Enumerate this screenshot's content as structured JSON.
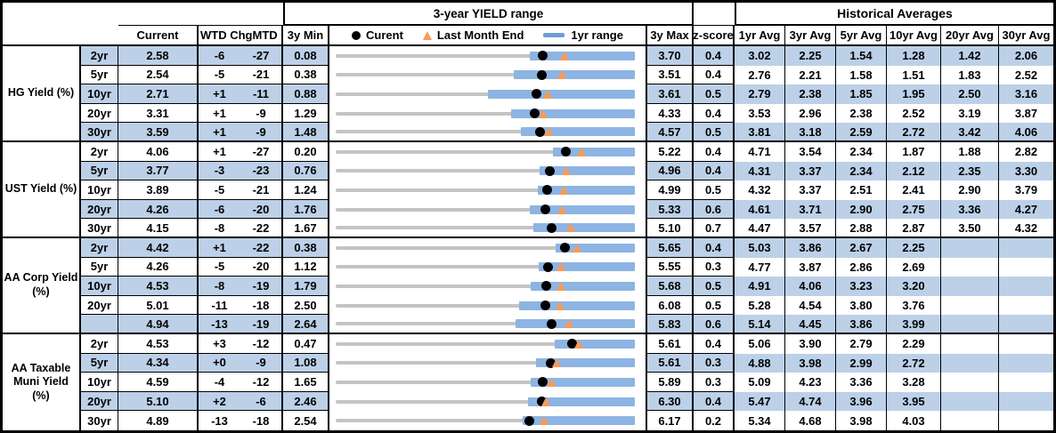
{
  "header": {
    "chart_section_title": "3-year YIELD range",
    "hist_section_title": "Historical Averages",
    "columns": {
      "current": "Current",
      "wtd": "WTD Chg",
      "mtd": "MTD Chg",
      "min3y": "3y Min",
      "max3y": "3y Max",
      "zscore": "z-score"
    },
    "avg_headers": [
      "1yr Avg",
      "3yr Avg",
      "5yr Avg",
      "10yr Avg",
      "20yr Avg",
      "30yr Avg"
    ],
    "legend": {
      "current": "Curent",
      "last_month_end": "Last Month End",
      "range_1yr": "1yr range"
    }
  },
  "colors": {
    "stripe": "#BCD0E8",
    "bar": "#8DB4E2",
    "track": "#C4C4C4",
    "marker_dot": "#000000",
    "marker_triangle": "#F79B57",
    "legend_dash": "#6D9ED4"
  },
  "chart_data": {
    "type": "table",
    "title": "3-year YIELD range",
    "row_chart_kind": "range-strip: per-row x-domain [3y Min, 3y Max]; markers = Current dot, Last Month End triangle, 1yr range bar",
    "groups": [
      {
        "name": "HG Yield (%)",
        "rows": [
          {
            "tenor": "2yr",
            "current": "2.58",
            "wtd": "-6",
            "mtd": "-27",
            "min3y": "0.08",
            "max3y": "3.70",
            "z": "0.4",
            "last_month_end": 2.85,
            "range1yr_lo": 2.43,
            "range1yr_hi": 3.7,
            "avgs": [
              "3.02",
              "2.25",
              "1.54",
              "1.28",
              "1.42",
              "2.06"
            ]
          },
          {
            "tenor": "5yr",
            "current": "2.54",
            "wtd": "-5",
            "mtd": "-21",
            "min3y": "0.38",
            "max3y": "3.51",
            "z": "0.4",
            "last_month_end": 2.75,
            "range1yr_lo": 2.24,
            "range1yr_hi": 3.51,
            "avgs": [
              "2.76",
              "2.21",
              "1.58",
              "1.51",
              "1.83",
              "2.52"
            ]
          },
          {
            "tenor": "10yr",
            "current": "2.71",
            "wtd": "+1",
            "mtd": "-11",
            "min3y": "0.88",
            "max3y": "3.61",
            "z": "0.5",
            "last_month_end": 2.82,
            "range1yr_lo": 2.27,
            "range1yr_hi": 3.61,
            "avgs": [
              "2.79",
              "2.38",
              "1.85",
              "1.95",
              "2.50",
              "3.16"
            ]
          },
          {
            "tenor": "20yr",
            "current": "3.31",
            "wtd": "+1",
            "mtd": "-9",
            "min3y": "1.29",
            "max3y": "4.33",
            "z": "0.4",
            "last_month_end": 3.4,
            "range1yr_lo": 3.07,
            "range1yr_hi": 4.33,
            "avgs": [
              "3.53",
              "2.96",
              "2.38",
              "2.52",
              "3.19",
              "3.87"
            ]
          },
          {
            "tenor": "30yr",
            "current": "3.59",
            "wtd": "+1",
            "mtd": "-9",
            "min3y": "1.48",
            "max3y": "4.57",
            "z": "0.5",
            "last_month_end": 3.68,
            "range1yr_lo": 3.39,
            "range1yr_hi": 4.57,
            "avgs": [
              "3.81",
              "3.18",
              "2.59",
              "2.72",
              "3.42",
              "4.06"
            ]
          }
        ]
      },
      {
        "name": "UST Yield (%)",
        "rows": [
          {
            "tenor": "2yr",
            "current": "4.06",
            "wtd": "+1",
            "mtd": "-27",
            "min3y": "0.20",
            "max3y": "5.22",
            "z": "0.4",
            "last_month_end": 4.33,
            "range1yr_lo": 3.85,
            "range1yr_hi": 5.22,
            "avgs": [
              "4.71",
              "3.54",
              "2.34",
              "1.87",
              "1.88",
              "2.82"
            ]
          },
          {
            "tenor": "5yr",
            "current": "3.77",
            "wtd": "-3",
            "mtd": "-23",
            "min3y": "0.76",
            "max3y": "4.96",
            "z": "0.4",
            "last_month_end": 4.0,
            "range1yr_lo": 3.62,
            "range1yr_hi": 4.96,
            "avgs": [
              "4.31",
              "3.37",
              "2.34",
              "2.12",
              "2.35",
              "3.30"
            ]
          },
          {
            "tenor": "10yr",
            "current": "3.89",
            "wtd": "-5",
            "mtd": "-21",
            "min3y": "1.24",
            "max3y": "4.99",
            "z": "0.5",
            "last_month_end": 4.1,
            "range1yr_lo": 3.77,
            "range1yr_hi": 4.99,
            "avgs": [
              "4.32",
              "3.37",
              "2.51",
              "2.41",
              "2.90",
              "3.79"
            ]
          },
          {
            "tenor": "20yr",
            "current": "4.26",
            "wtd": "-6",
            "mtd": "-20",
            "min3y": "1.76",
            "max3y": "5.33",
            "z": "0.6",
            "last_month_end": 4.46,
            "range1yr_lo": 4.08,
            "range1yr_hi": 5.33,
            "avgs": [
              "4.61",
              "3.71",
              "2.90",
              "2.75",
              "3.36",
              "4.27"
            ]
          },
          {
            "tenor": "30yr",
            "current": "4.15",
            "wtd": "-8",
            "mtd": "-22",
            "min3y": "1.67",
            "max3y": "5.10",
            "z": "0.7",
            "last_month_end": 4.37,
            "range1yr_lo": 3.94,
            "range1yr_hi": 5.1,
            "avgs": [
              "4.47",
              "3.57",
              "2.88",
              "2.87",
              "3.50",
              "4.32"
            ]
          }
        ]
      },
      {
        "name": "AA Corp Yield (%)",
        "rows": [
          {
            "tenor": "2yr",
            "current": "4.42",
            "wtd": "+1",
            "mtd": "-22",
            "min3y": "0.38",
            "max3y": "5.65",
            "z": "0.4",
            "last_month_end": 4.64,
            "range1yr_lo": 4.25,
            "range1yr_hi": 5.65,
            "avgs": [
              "5.03",
              "3.86",
              "2.67",
              "2.25",
              "",
              ""
            ]
          },
          {
            "tenor": "5yr",
            "current": "4.26",
            "wtd": "-5",
            "mtd": "-20",
            "min3y": "1.12",
            "max3y": "5.55",
            "z": "0.3",
            "last_month_end": 4.46,
            "range1yr_lo": 4.13,
            "range1yr_hi": 5.55,
            "avgs": [
              "4.77",
              "3.87",
              "2.86",
              "2.69",
              "",
              ""
            ]
          },
          {
            "tenor": "10yr",
            "current": "4.53",
            "wtd": "-8",
            "mtd": "-19",
            "min3y": "1.79",
            "max3y": "5.68",
            "z": "0.5",
            "last_month_end": 4.72,
            "range1yr_lo": 4.32,
            "range1yr_hi": 5.68,
            "avgs": [
              "4.91",
              "4.06",
              "3.23",
              "3.20",
              "",
              ""
            ]
          },
          {
            "tenor": "20yr",
            "current": "5.01",
            "wtd": "-11",
            "mtd": "-18",
            "min3y": "2.50",
            "max3y": "6.08",
            "z": "0.5",
            "last_month_end": 5.19,
            "range1yr_lo": 4.69,
            "range1yr_hi": 6.08,
            "avgs": [
              "5.28",
              "4.54",
              "3.80",
              "3.76",
              "",
              ""
            ]
          },
          {
            "tenor": "",
            "current": "4.94",
            "wtd": "-13",
            "mtd": "-19",
            "min3y": "2.64",
            "max3y": "5.83",
            "z": "0.6",
            "last_month_end": 5.13,
            "range1yr_lo": 4.56,
            "range1yr_hi": 5.83,
            "avgs": [
              "5.14",
              "4.45",
              "3.86",
              "3.99",
              "",
              ""
            ]
          }
        ]
      },
      {
        "name": "AA Taxable Muni Yield (%)",
        "rows": [
          {
            "tenor": "2yr",
            "current": "4.53",
            "wtd": "+3",
            "mtd": "-12",
            "min3y": "0.47",
            "max3y": "5.61",
            "z": "0.4",
            "last_month_end": 4.65,
            "range1yr_lo": 4.24,
            "range1yr_hi": 5.61,
            "avgs": [
              "5.06",
              "3.90",
              "2.79",
              "2.29",
              "",
              ""
            ]
          },
          {
            "tenor": "5yr",
            "current": "4.34",
            "wtd": "+0",
            "mtd": "-9",
            "min3y": "1.08",
            "max3y": "5.61",
            "z": "0.3",
            "last_month_end": 4.43,
            "range1yr_lo": 4.11,
            "range1yr_hi": 5.61,
            "avgs": [
              "4.88",
              "3.98",
              "2.99",
              "2.72",
              "",
              ""
            ]
          },
          {
            "tenor": "10yr",
            "current": "4.59",
            "wtd": "-4",
            "mtd": "-12",
            "min3y": "1.65",
            "max3y": "5.89",
            "z": "0.3",
            "last_month_end": 4.71,
            "range1yr_lo": 4.41,
            "range1yr_hi": 5.89,
            "avgs": [
              "5.09",
              "4.23",
              "3.36",
              "3.28",
              "",
              ""
            ]
          },
          {
            "tenor": "20yr",
            "current": "5.10",
            "wtd": "+2",
            "mtd": "-6",
            "min3y": "2.46",
            "max3y": "6.30",
            "z": "0.4",
            "last_month_end": 5.16,
            "range1yr_lo": 4.93,
            "range1yr_hi": 6.3,
            "avgs": [
              "5.47",
              "4.74",
              "3.96",
              "3.95",
              "",
              ""
            ]
          },
          {
            "tenor": "30yr",
            "current": "4.89",
            "wtd": "-13",
            "mtd": "-18",
            "min3y": "2.54",
            "max3y": "6.17",
            "z": "0.2",
            "last_month_end": 5.07,
            "range1yr_lo": 4.81,
            "range1yr_hi": 6.17,
            "avgs": [
              "5.34",
              "4.68",
              "3.98",
              "4.03",
              "",
              ""
            ]
          }
        ]
      }
    ]
  }
}
